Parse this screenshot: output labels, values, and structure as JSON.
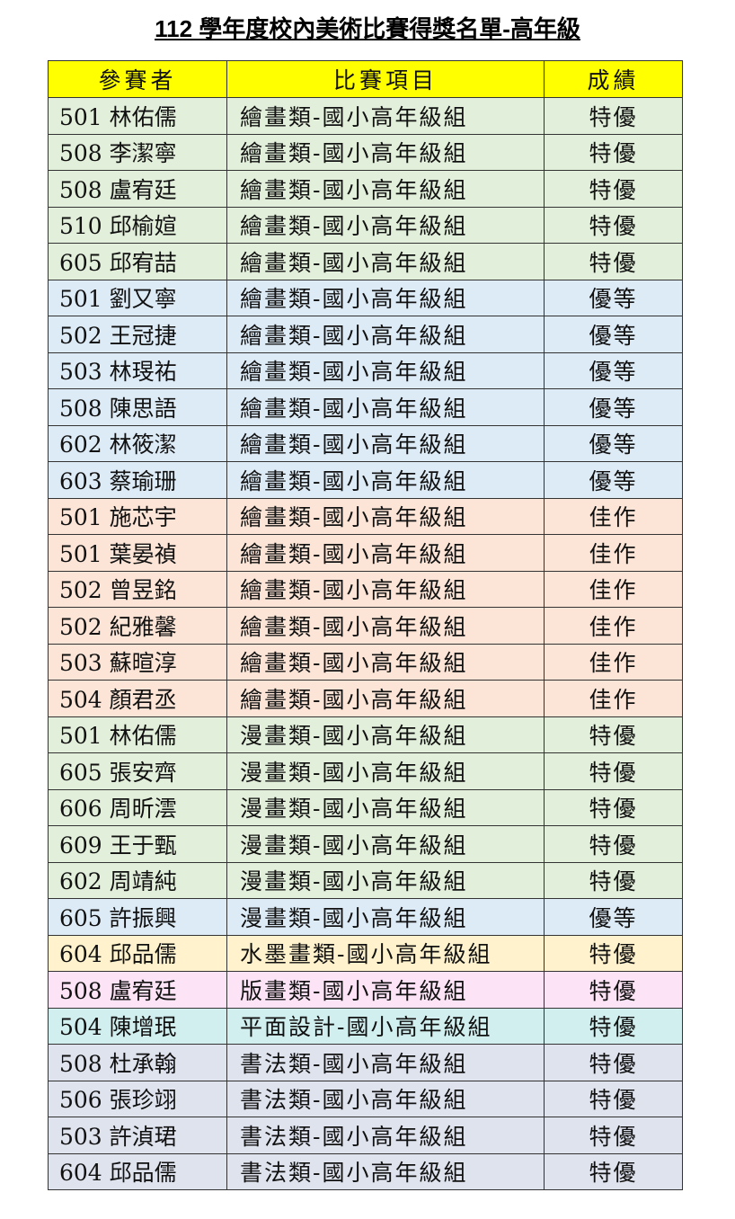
{
  "title": "112 學年度校內美術比賽得獎名單-高年級",
  "headers": [
    "參賽者",
    "比賽項目",
    "成績"
  ],
  "colors": {
    "header": "#ffff00",
    "green": "#e2efda",
    "blue": "#ddebf7",
    "peach": "#fce4d6",
    "yellow": "#fff2cc",
    "pink": "#fce4f6",
    "cyan": "#d2efef",
    "gray": "#dfe3ee"
  },
  "rows": [
    {
      "participant": "501 林佑儒",
      "event": "繪畫類-國小高年級組",
      "result": "特優",
      "color": "green"
    },
    {
      "participant": "508 李潔寧",
      "event": "繪畫類-國小高年級組",
      "result": "特優",
      "color": "green"
    },
    {
      "participant": "508 盧宥廷",
      "event": "繪畫類-國小高年級組",
      "result": "特優",
      "color": "green"
    },
    {
      "participant": "510 邱榆媗",
      "event": "繪畫類-國小高年級組",
      "result": "特優",
      "color": "green"
    },
    {
      "participant": "605 邱宥喆",
      "event": "繪畫類-國小高年級組",
      "result": "特優",
      "color": "green"
    },
    {
      "participant": "501 劉又寧",
      "event": "繪畫類-國小高年級組",
      "result": "優等",
      "color": "blue"
    },
    {
      "participant": "502 王冠捷",
      "event": "繪畫類-國小高年級組",
      "result": "優等",
      "color": "blue"
    },
    {
      "participant": "503 林琝祐",
      "event": "繪畫類-國小高年級組",
      "result": "優等",
      "color": "blue"
    },
    {
      "participant": "508 陳思語",
      "event": "繪畫類-國小高年級組",
      "result": "優等",
      "color": "blue"
    },
    {
      "participant": "602 林筱潔",
      "event": "繪畫類-國小高年級組",
      "result": "優等",
      "color": "blue"
    },
    {
      "participant": "603 蔡瑜珊",
      "event": "繪畫類-國小高年級組",
      "result": "優等",
      "color": "blue"
    },
    {
      "participant": "501 施芯宇",
      "event": "繪畫類-國小高年級組",
      "result": "佳作",
      "color": "peach"
    },
    {
      "participant": "501 葉晏禎",
      "event": "繪畫類-國小高年級組",
      "result": "佳作",
      "color": "peach"
    },
    {
      "participant": "502 曾昱銘",
      "event": "繪畫類-國小高年級組",
      "result": "佳作",
      "color": "peach"
    },
    {
      "participant": "502 紀雅馨",
      "event": "繪畫類-國小高年級組",
      "result": "佳作",
      "color": "peach"
    },
    {
      "participant": "503 蘇暄淳",
      "event": "繪畫類-國小高年級組",
      "result": "佳作",
      "color": "peach"
    },
    {
      "participant": "504 顏君丞",
      "event": "繪畫類-國小高年級組",
      "result": "佳作",
      "color": "peach"
    },
    {
      "participant": "501 林佑儒",
      "event": "漫畫類-國小高年級組",
      "result": "特優",
      "color": "green"
    },
    {
      "participant": "605 張安齊",
      "event": "漫畫類-國小高年級組",
      "result": "特優",
      "color": "green"
    },
    {
      "participant": "606 周昕澐",
      "event": "漫畫類-國小高年級組",
      "result": "特優",
      "color": "green"
    },
    {
      "participant": "609 王于甄",
      "event": "漫畫類-國小高年級組",
      "result": "特優",
      "color": "green"
    },
    {
      "participant": "602 周靖純",
      "event": "漫畫類-國小高年級組",
      "result": "特優",
      "color": "green"
    },
    {
      "participant": "605 許振興",
      "event": "漫畫類-國小高年級組",
      "result": "優等",
      "color": "blue"
    },
    {
      "participant": "604 邱品儒",
      "event": "水墨畫類-國小高年級組",
      "result": "特優",
      "color": "yellow"
    },
    {
      "participant": "508 盧宥廷",
      "event": "版畫類-國小高年級組",
      "result": "特優",
      "color": "pink"
    },
    {
      "participant": "504 陳增珉",
      "event": "平面設計-國小高年級組",
      "result": "特優",
      "color": "cyan"
    },
    {
      "participant": "508 杜承翰",
      "event": "書法類-國小高年級組",
      "result": "特優",
      "color": "gray"
    },
    {
      "participant": "506 張珍翊",
      "event": "書法類-國小高年級組",
      "result": "特優",
      "color": "gray"
    },
    {
      "participant": "503 許湞珺",
      "event": "書法類-國小高年級組",
      "result": "特優",
      "color": "gray"
    },
    {
      "participant": "604 邱品儒",
      "event": "書法類-國小高年級組",
      "result": "特優",
      "color": "gray"
    }
  ]
}
